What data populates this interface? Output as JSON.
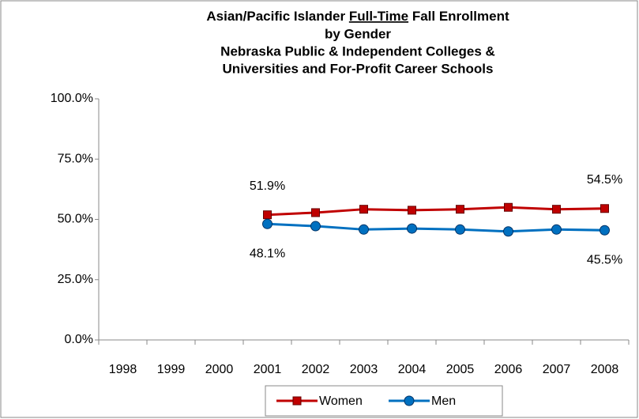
{
  "chart_data": {
    "type": "line",
    "title": [
      "Asian/Pacific Islander",
      "Full-Time",
      "Fall Enrollment",
      "by Gender",
      "Nebraska Public & Independent Colleges &",
      "Universities and For-Profit Career Schools"
    ],
    "categories": [
      "1998",
      "1999",
      "2000",
      "2001",
      "2002",
      "2003",
      "2004",
      "2005",
      "2006",
      "2007",
      "2008"
    ],
    "series": [
      {
        "name": "Women",
        "color": "#c00000",
        "marker": "square",
        "values": [
          null,
          null,
          null,
          51.9,
          52.8,
          54.2,
          53.8,
          54.2,
          55.0,
          54.2,
          54.5
        ],
        "value_labels": [
          null,
          null,
          null,
          "51.9%",
          null,
          null,
          null,
          null,
          null,
          null,
          "54.5%"
        ]
      },
      {
        "name": "Men",
        "color": "#0070c0",
        "marker": "circle",
        "values": [
          null,
          null,
          null,
          48.1,
          47.2,
          45.8,
          46.2,
          45.8,
          45.0,
          45.8,
          45.5
        ],
        "value_labels": [
          null,
          null,
          null,
          "48.1%",
          null,
          null,
          null,
          null,
          null,
          null,
          "45.5%"
        ]
      }
    ],
    "ylim": [
      0,
      100
    ],
    "yticks": [
      {
        "value": 0,
        "label": "0.0%"
      },
      {
        "value": 25,
        "label": "25.0%"
      },
      {
        "value": 50,
        "label": "50.0%"
      },
      {
        "value": 75,
        "label": "75.0%"
      },
      {
        "value": 100,
        "label": "100.0%"
      }
    ],
    "grid": false,
    "legend": "bottom"
  }
}
